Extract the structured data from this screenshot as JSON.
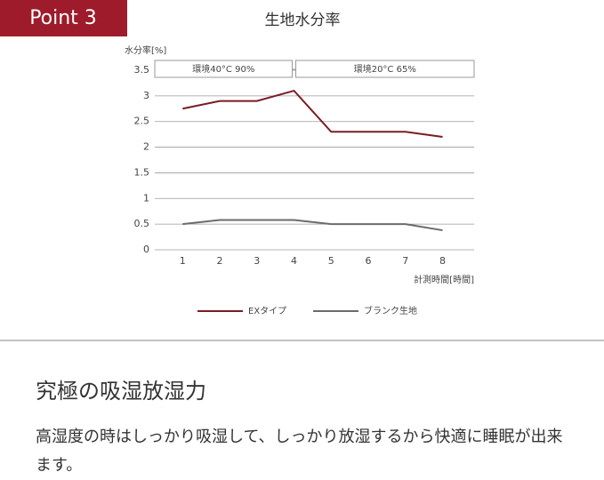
{
  "badge": "Point 3",
  "chart_data": {
    "type": "line",
    "title": "生地水分率",
    "y_label": "水分率[%]",
    "x_label": "計測時間[時間]",
    "x": [
      1,
      2,
      3,
      4,
      5,
      6,
      7,
      8
    ],
    "xlim": [
      0.25,
      8.85
    ],
    "xticks": [
      1,
      2,
      3,
      4,
      5,
      6,
      7,
      8
    ],
    "ylim": [
      0,
      3.5
    ],
    "yticks": [
      0,
      0.5,
      1,
      1.5,
      2,
      2.5,
      3,
      3.5
    ],
    "grid": true,
    "annotations": [
      "環境40°C 90%",
      "環境20°C 65%"
    ],
    "series": [
      {
        "name": "EXタイプ",
        "color": "#7a1c25",
        "values": [
          2.75,
          2.9,
          2.9,
          3.1,
          2.3,
          2.3,
          2.3,
          2.2
        ]
      },
      {
        "name": "ブランク生地",
        "color": "#6b6b6b",
        "values": [
          0.5,
          0.58,
          0.58,
          0.58,
          0.5,
          0.5,
          0.5,
          0.38
        ]
      }
    ]
  },
  "heading": "究極の吸湿放湿力",
  "body": "高湿度の時はしっかり吸湿して、しっかり放湿するから快適に睡眠が出来ます。"
}
